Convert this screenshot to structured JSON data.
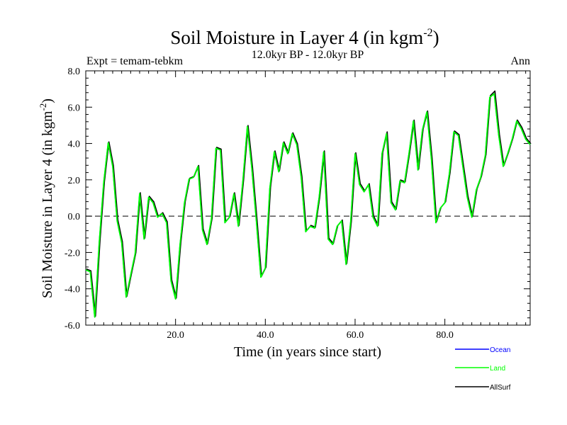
{
  "chart_data": {
    "type": "line",
    "title": "Soil Moisture in Layer 4 (in kgm",
    "title_sup": "-2",
    "title_close": ")",
    "subtitle_left": "Expt = temam-tebkm",
    "subtitle_center": "12.0kyr BP - 12.0kyr BP",
    "subtitle_right": "Ann",
    "xlabel": "Time (in years since start)",
    "ylabel": "Soil Moisture in Layer 4 (in kgm",
    "ylabel_sup": "-2",
    "ylabel_close": ")",
    "xlim": [
      0,
      99
    ],
    "ylim": [
      -6,
      8
    ],
    "xticks": [
      20,
      40,
      60,
      80
    ],
    "xtick_labels": [
      "20.0",
      "40.0",
      "60.0",
      "80.0"
    ],
    "yticks": [
      -6,
      -4,
      -2,
      0,
      2,
      4,
      6,
      8
    ],
    "ytick_labels": [
      "-6.0",
      "-4.0",
      "-2.0",
      "0.0",
      "2.0",
      "4.0",
      "6.0",
      "8.0"
    ],
    "reference_line": 0,
    "x": [
      0,
      1,
      2,
      3,
      4,
      5,
      6,
      7,
      8,
      9,
      10,
      11,
      12,
      13,
      14,
      15,
      16,
      17,
      18,
      19,
      20,
      21,
      22,
      23,
      24,
      25,
      26,
      27,
      28,
      29,
      30,
      31,
      32,
      33,
      34,
      35,
      36,
      37,
      38,
      39,
      40,
      41,
      42,
      43,
      44,
      45,
      46,
      47,
      48,
      49,
      50,
      51,
      52,
      53,
      54,
      55,
      56,
      57,
      58,
      59,
      60,
      61,
      62,
      63,
      64,
      65,
      66,
      67,
      68,
      69,
      70,
      71,
      72,
      73,
      74,
      75,
      76,
      77,
      78,
      79,
      80,
      81,
      82,
      83,
      84,
      85,
      86,
      87,
      88,
      89,
      90,
      91,
      92,
      93,
      94,
      95,
      96,
      97,
      98,
      99
    ],
    "series": [
      {
        "name": "Ocean",
        "color": "#0000ff",
        "values": [
          -3.0,
          -3.1,
          -5.6,
          -1.5,
          1.8,
          4.0,
          2.7,
          -0.3,
          -1.5,
          -4.5,
          -3.3,
          -2.1,
          1.2,
          -1.3,
          1.0,
          0.7,
          -0.1,
          0.1,
          -0.4,
          -3.6,
          -4.6,
          -1.6,
          0.7,
          2.0,
          2.1,
          2.7,
          -0.8,
          -1.6,
          -0.2,
          3.7,
          3.6,
          -0.4,
          -0.1,
          1.2,
          -0.6,
          1.9,
          4.9,
          2.6,
          -0.3,
          -3.4,
          -2.9,
          1.5,
          3.5,
          2.4,
          4.0,
          3.4,
          4.5,
          3.9,
          2.1,
          -0.9,
          -0.6,
          -0.7,
          1.0,
          3.5,
          -1.3,
          -1.6,
          -0.6,
          -0.3,
          -2.7,
          -0.4,
          3.4,
          1.7,
          1.3,
          1.7,
          -0.1,
          -0.6,
          3.4,
          4.5,
          0.7,
          0.3,
          1.9,
          1.8,
          3.4,
          5.2,
          2.5,
          4.7,
          5.7,
          3.1,
          -0.4,
          0.4,
          0.7,
          2.3,
          4.6,
          4.4,
          2.7,
          1.0,
          -0.1,
          1.4,
          2.1,
          3.3,
          6.5,
          6.7,
          4.4,
          2.7,
          3.4,
          4.2,
          5.2,
          4.8,
          4.2,
          3.9
        ]
      },
      {
        "name": "Land",
        "color": "#00ff00",
        "values": [
          -3.0,
          -3.1,
          -5.6,
          -1.5,
          1.8,
          4.0,
          2.7,
          -0.3,
          -1.5,
          -4.5,
          -3.3,
          -2.1,
          1.2,
          -1.3,
          1.0,
          0.7,
          -0.1,
          0.1,
          -0.4,
          -3.6,
          -4.6,
          -1.6,
          0.7,
          2.0,
          2.1,
          2.7,
          -0.8,
          -1.6,
          -0.2,
          3.7,
          3.6,
          -0.4,
          -0.1,
          1.2,
          -0.6,
          1.9,
          4.9,
          2.6,
          -0.3,
          -3.4,
          -2.9,
          1.5,
          3.5,
          2.4,
          4.0,
          3.4,
          4.5,
          3.9,
          2.1,
          -0.9,
          -0.6,
          -0.7,
          1.0,
          3.5,
          -1.3,
          -1.6,
          -0.6,
          -0.3,
          -2.7,
          -0.4,
          3.4,
          1.7,
          1.3,
          1.7,
          -0.1,
          -0.6,
          3.4,
          4.5,
          0.7,
          0.3,
          1.9,
          1.8,
          3.4,
          5.2,
          2.5,
          4.7,
          5.7,
          3.1,
          -0.4,
          0.4,
          0.7,
          2.3,
          4.6,
          4.4,
          2.7,
          1.0,
          -0.1,
          1.4,
          2.1,
          3.3,
          6.5,
          6.7,
          4.4,
          2.7,
          3.4,
          4.2,
          5.2,
          4.8,
          4.2,
          3.9
        ]
      },
      {
        "name": "AllSurf",
        "color": "#000000",
        "values": [
          -2.95,
          -3.05,
          -5.55,
          -1.45,
          1.85,
          4.05,
          2.75,
          -0.25,
          -1.45,
          -4.45,
          -3.25,
          -2.05,
          1.25,
          -1.25,
          1.05,
          0.75,
          -0.05,
          0.15,
          -0.35,
          -3.55,
          -4.55,
          -1.55,
          0.75,
          2.05,
          2.15,
          2.75,
          -0.75,
          -1.55,
          -0.15,
          3.75,
          3.65,
          -0.35,
          -0.05,
          1.25,
          -0.55,
          1.95,
          4.95,
          2.65,
          -0.25,
          -3.35,
          -2.85,
          1.55,
          3.55,
          2.45,
          4.05,
          3.45,
          4.55,
          3.95,
          2.15,
          -0.85,
          -0.55,
          -0.65,
          1.05,
          3.55,
          -1.25,
          -1.55,
          -0.55,
          -0.25,
          -2.65,
          -0.35,
          3.45,
          1.75,
          1.35,
          1.75,
          -0.05,
          -0.55,
          3.45,
          4.6,
          0.75,
          0.35,
          1.95,
          1.85,
          3.45,
          5.25,
          2.55,
          4.75,
          5.75,
          3.15,
          -0.35,
          0.45,
          0.75,
          2.35,
          4.65,
          4.45,
          2.75,
          1.05,
          -0.05,
          1.45,
          2.15,
          3.35,
          6.6,
          6.85,
          4.45,
          2.75,
          3.45,
          4.25,
          5.25,
          4.85,
          4.25,
          3.95
        ]
      }
    ],
    "legend": [
      "Ocean",
      "Land",
      "AllSurf"
    ],
    "legend_position": "bottom-right"
  }
}
